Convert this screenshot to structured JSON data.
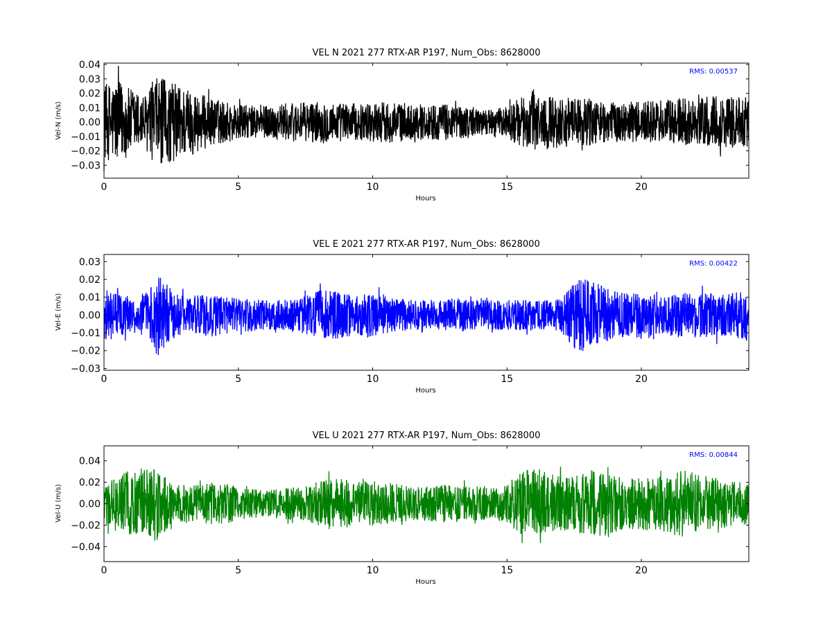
{
  "chart_data": [
    {
      "type": "line",
      "title": "VEL N 2021 277 RTX-AR  P197, Num_Obs: 8628000",
      "xlabel": "Hours",
      "ylabel": "Vel-N (m/s)",
      "xlim": [
        0,
        24
      ],
      "ylim": [
        -0.039,
        0.041
      ],
      "xticks": [
        0,
        5,
        10,
        15,
        20
      ],
      "xtick_labels": [
        "0",
        "5",
        "10",
        "15",
        "20"
      ],
      "yticks": [
        -0.03,
        -0.02,
        -0.01,
        0.0,
        0.01,
        0.02,
        0.03,
        0.04
      ],
      "ytick_labels": [
        "−0.03",
        "−0.02",
        "−0.01",
        "0.00",
        "0.01",
        "0.02",
        "0.03",
        "0.04"
      ],
      "annotation": "RMS:  0.00537",
      "color": "#000000",
      "annotation_color": "#0000ff",
      "series": [
        {
          "x": [
            0,
            0.5,
            1,
            1.5,
            2,
            2.5,
            3,
            3.5,
            4,
            4.5,
            5,
            5.5,
            6,
            6.5,
            7,
            7.5,
            8,
            8.5,
            9,
            9.5,
            10,
            10.5,
            11,
            11.5,
            12,
            12.5,
            13,
            13.5,
            14,
            14.5,
            15,
            15.5,
            16,
            16.5,
            17,
            17.5,
            18,
            18.5,
            19,
            19.5,
            20,
            20.5,
            21,
            21.5,
            22,
            22.5,
            23,
            23.5,
            24
          ],
          "envelope": [
            0.025,
            0.028,
            0.022,
            0.018,
            0.03,
            0.027,
            0.024,
            0.02,
            0.016,
            0.014,
            0.012,
            0.011,
            0.011,
            0.012,
            0.013,
            0.013,
            0.014,
            0.013,
            0.013,
            0.012,
            0.013,
            0.014,
            0.013,
            0.012,
            0.012,
            0.012,
            0.012,
            0.011,
            0.009,
            0.008,
            0.011,
            0.016,
            0.02,
            0.018,
            0.017,
            0.016,
            0.016,
            0.014,
            0.013,
            0.013,
            0.014,
            0.014,
            0.015,
            0.016,
            0.016,
            0.017,
            0.017,
            0.017,
            0.017
          ]
        }
      ]
    },
    {
      "type": "line",
      "title": "VEL E 2021 277 RTX-AR  P197, Num_Obs: 8628000",
      "xlabel": "Hours",
      "ylabel": "Vel-E (m/s)",
      "xlim": [
        0,
        24
      ],
      "ylim": [
        -0.031,
        0.034
      ],
      "xticks": [
        0,
        5,
        10,
        15,
        20
      ],
      "xtick_labels": [
        "0",
        "5",
        "10",
        "15",
        "20"
      ],
      "yticks": [
        -0.03,
        -0.02,
        -0.01,
        0.0,
        0.01,
        0.02,
        0.03
      ],
      "ytick_labels": [
        "−0.03",
        "−0.02",
        "−0.01",
        "0.00",
        "0.01",
        "0.02",
        "0.03"
      ],
      "annotation": "RMS:  0.00422",
      "color": "#0000ff",
      "annotation_color": "#0000ff",
      "series": [
        {
          "x": [
            0,
            0.5,
            1,
            1.5,
            2,
            2.5,
            3,
            3.5,
            4,
            4.5,
            5,
            5.5,
            6,
            6.5,
            7,
            7.5,
            8,
            8.5,
            9,
            9.5,
            10,
            10.5,
            11,
            11.5,
            12,
            12.5,
            13,
            13.5,
            14,
            14.5,
            15,
            15.5,
            16,
            16.5,
            17,
            17.5,
            18,
            18.5,
            19,
            19.5,
            20,
            20.5,
            21,
            21.5,
            22,
            22.5,
            23,
            23.5,
            24
          ],
          "envelope": [
            0.014,
            0.012,
            0.01,
            0.011,
            0.022,
            0.014,
            0.01,
            0.011,
            0.012,
            0.01,
            0.009,
            0.009,
            0.008,
            0.008,
            0.009,
            0.01,
            0.013,
            0.014,
            0.012,
            0.011,
            0.012,
            0.011,
            0.009,
            0.008,
            0.008,
            0.008,
            0.009,
            0.009,
            0.008,
            0.008,
            0.008,
            0.008,
            0.008,
            0.008,
            0.009,
            0.018,
            0.02,
            0.016,
            0.013,
            0.012,
            0.013,
            0.013,
            0.012,
            0.012,
            0.012,
            0.012,
            0.012,
            0.012,
            0.015
          ]
        }
      ]
    },
    {
      "type": "line",
      "title": "VEL U 2021 277 RTX-AR  P197, Num_Obs: 8628000",
      "xlabel": "Hours",
      "ylabel": "Vel-U (m/s)",
      "xlim": [
        0,
        24
      ],
      "ylim": [
        -0.054,
        0.054
      ],
      "xticks": [
        0,
        5,
        10,
        15,
        20
      ],
      "xtick_labels": [
        "0",
        "5",
        "10",
        "15",
        "20"
      ],
      "yticks": [
        -0.04,
        -0.02,
        0.0,
        0.02,
        0.04
      ],
      "ytick_labels": [
        "−0.04",
        "−0.02",
        "0.00",
        "0.02",
        "0.04"
      ],
      "annotation": "RMS:  0.00844",
      "color": "#008000",
      "annotation_color": "#0000ff",
      "series": [
        {
          "x": [
            0,
            0.5,
            1,
            1.5,
            2,
            2.5,
            3,
            3.5,
            4,
            4.5,
            5,
            5.5,
            6,
            6.5,
            7,
            7.5,
            8,
            8.5,
            9,
            9.5,
            10,
            10.5,
            11,
            11.5,
            12,
            12.5,
            13,
            13.5,
            14,
            14.5,
            15,
            15.5,
            16,
            16.5,
            17,
            17.5,
            18,
            18.5,
            19,
            19.5,
            20,
            20.5,
            21,
            21.5,
            22,
            22.5,
            23,
            23.5,
            24
          ],
          "envelope": [
            0.02,
            0.025,
            0.03,
            0.032,
            0.033,
            0.018,
            0.018,
            0.017,
            0.018,
            0.018,
            0.015,
            0.013,
            0.012,
            0.013,
            0.015,
            0.015,
            0.02,
            0.022,
            0.022,
            0.02,
            0.02,
            0.019,
            0.017,
            0.015,
            0.015,
            0.017,
            0.017,
            0.016,
            0.015,
            0.014,
            0.017,
            0.03,
            0.032,
            0.028,
            0.025,
            0.024,
            0.03,
            0.032,
            0.025,
            0.022,
            0.024,
            0.024,
            0.025,
            0.03,
            0.028,
            0.025,
            0.022,
            0.02,
            0.018
          ]
        }
      ]
    }
  ]
}
